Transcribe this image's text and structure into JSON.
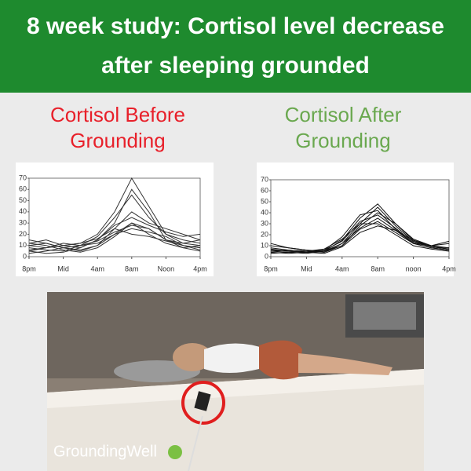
{
  "header": {
    "title": "8 week study: Cortisol level decrease after sleeping grounded"
  },
  "chart_data": [
    {
      "type": "line",
      "title": "Cortisol Before Grounding",
      "title_color": "#e8202a",
      "x": [
        0,
        2,
        4,
        6,
        8,
        10,
        12,
        14,
        16,
        18,
        20
      ],
      "xlim": [
        0,
        20
      ],
      "xticks": [
        {
          "value": 0,
          "label": "8pm"
        },
        {
          "value": 4,
          "label": "Mid"
        },
        {
          "value": 8,
          "label": "4am"
        },
        {
          "value": 12,
          "label": "8am"
        },
        {
          "value": 16,
          "label": "Noon"
        },
        {
          "value": 20,
          "label": "4pm"
        }
      ],
      "ylim": [
        0,
        70
      ],
      "yticks": [
        0,
        10,
        20,
        30,
        40,
        50,
        60,
        70
      ],
      "series": [
        {
          "color": "#333333",
          "values": [
            10,
            12,
            8,
            5,
            10,
            20,
            30,
            25,
            15,
            10,
            8
          ]
        },
        {
          "color": "#333333",
          "values": [
            5,
            8,
            10,
            12,
            20,
            40,
            70,
            45,
            20,
            12,
            10
          ]
        },
        {
          "color": "#333333",
          "values": [
            12,
            15,
            10,
            8,
            15,
            30,
            60,
            40,
            15,
            8,
            5
          ]
        },
        {
          "color": "#333333",
          "values": [
            8,
            6,
            5,
            10,
            18,
            35,
            55,
            35,
            20,
            15,
            12
          ]
        },
        {
          "color": "#333333",
          "values": [
            15,
            12,
            8,
            6,
            10,
            25,
            40,
            30,
            25,
            20,
            15
          ]
        },
        {
          "color": "#333333",
          "values": [
            5,
            3,
            4,
            8,
            15,
            28,
            35,
            28,
            22,
            18,
            20
          ]
        },
        {
          "color": "#333333",
          "values": [
            10,
            8,
            12,
            10,
            12,
            20,
            25,
            22,
            18,
            10,
            8
          ]
        },
        {
          "color": "#333333",
          "values": [
            3,
            5,
            8,
            10,
            14,
            22,
            28,
            25,
            15,
            12,
            15
          ]
        },
        {
          "color": "#333333",
          "values": [
            12,
            10,
            6,
            4,
            8,
            18,
            30,
            20,
            12,
            8,
            10
          ]
        },
        {
          "color": "#333333",
          "values": [
            6,
            8,
            10,
            12,
            16,
            25,
            20,
            18,
            14,
            10,
            6
          ]
        }
      ]
    },
    {
      "type": "line",
      "title": "Cortisol After Grounding",
      "title_color": "#6aa84f",
      "x": [
        0,
        2,
        4,
        6,
        8,
        10,
        12,
        14,
        16,
        18,
        20
      ],
      "xlim": [
        0,
        20
      ],
      "xticks": [
        {
          "value": 0,
          "label": "8pm"
        },
        {
          "value": 4,
          "label": "Mid"
        },
        {
          "value": 8,
          "label": "4am"
        },
        {
          "value": 12,
          "label": "8am"
        },
        {
          "value": 16,
          "label": "noon"
        },
        {
          "value": 20,
          "label": "4pm"
        }
      ],
      "ylim": [
        0,
        70
      ],
      "yticks": [
        0,
        10,
        20,
        30,
        40,
        50,
        60,
        70
      ],
      "series": [
        {
          "color": "#111111",
          "values": [
            5,
            4,
            3,
            5,
            15,
            35,
            48,
            30,
            15,
            10,
            8
          ]
        },
        {
          "color": "#111111",
          "values": [
            8,
            6,
            5,
            4,
            12,
            30,
            45,
            28,
            14,
            9,
            7
          ]
        },
        {
          "color": "#111111",
          "values": [
            3,
            4,
            5,
            6,
            18,
            38,
            42,
            25,
            12,
            8,
            6
          ]
        },
        {
          "color": "#111111",
          "values": [
            10,
            8,
            6,
            5,
            10,
            28,
            40,
            30,
            16,
            10,
            12
          ]
        },
        {
          "color": "#111111",
          "values": [
            6,
            5,
            4,
            6,
            14,
            32,
            38,
            26,
            13,
            9,
            8
          ]
        },
        {
          "color": "#111111",
          "values": [
            4,
            3,
            4,
            5,
            12,
            26,
            35,
            24,
            12,
            8,
            6
          ]
        },
        {
          "color": "#111111",
          "values": [
            12,
            8,
            6,
            4,
            10,
            25,
            32,
            22,
            12,
            10,
            14
          ]
        },
        {
          "color": "#111111",
          "values": [
            5,
            6,
            5,
            7,
            16,
            30,
            30,
            20,
            10,
            7,
            5
          ]
        },
        {
          "color": "#111111",
          "values": [
            7,
            5,
            4,
            3,
            9,
            22,
            28,
            24,
            15,
            9,
            7
          ]
        }
      ]
    }
  ],
  "brand": "GroundingWell"
}
